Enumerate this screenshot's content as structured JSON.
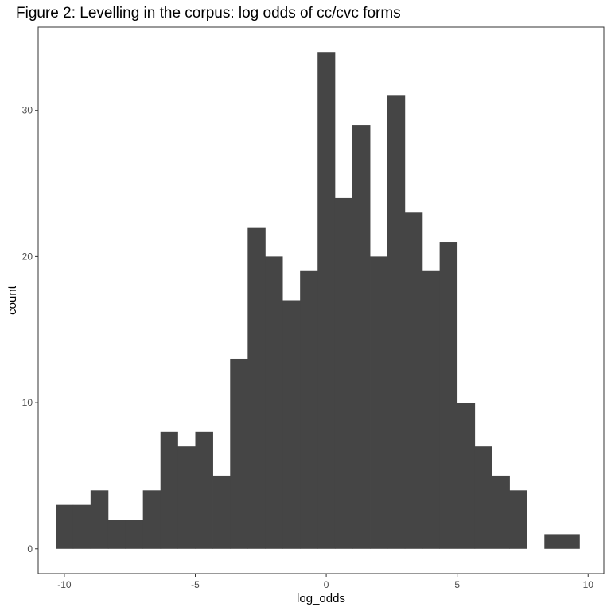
{
  "chart_data": {
    "type": "bar",
    "title": "Figure 2: Levelling in the corpus: log odds of cc/cvc forms",
    "xlabel": "log_odds",
    "ylabel": "count",
    "xlim": [
      -11.0,
      10.6
    ],
    "ylim": [
      -1.7,
      35.7
    ],
    "x_ticks": [
      -10,
      -5,
      0,
      5,
      10
    ],
    "x_tick_labels": [
      "-10",
      "-5",
      "0",
      "5",
      "10"
    ],
    "y_ticks": [
      0,
      10,
      20,
      30
    ],
    "y_tick_labels": [
      "0",
      "10",
      "20",
      "30"
    ],
    "grid": false,
    "bin_width": 0.667,
    "bins": [
      {
        "x0": -10.33,
        "x1": -9.67,
        "count": 3
      },
      {
        "x0": -9.67,
        "x1": -9.0,
        "count": 3
      },
      {
        "x0": -9.0,
        "x1": -8.33,
        "count": 4
      },
      {
        "x0": -8.33,
        "x1": -7.67,
        "count": 2
      },
      {
        "x0": -7.67,
        "x1": -7.0,
        "count": 2
      },
      {
        "x0": -7.0,
        "x1": -6.33,
        "count": 4
      },
      {
        "x0": -6.33,
        "x1": -5.67,
        "count": 8
      },
      {
        "x0": -5.67,
        "x1": -5.0,
        "count": 7
      },
      {
        "x0": -5.0,
        "x1": -4.33,
        "count": 8
      },
      {
        "x0": -4.33,
        "x1": -3.67,
        "count": 5
      },
      {
        "x0": -3.67,
        "x1": -3.0,
        "count": 13
      },
      {
        "x0": -3.0,
        "x1": -2.33,
        "count": 22
      },
      {
        "x0": -2.33,
        "x1": -1.67,
        "count": 20
      },
      {
        "x0": -1.67,
        "x1": -1.0,
        "count": 17
      },
      {
        "x0": -1.0,
        "x1": -0.33,
        "count": 19
      },
      {
        "x0": -0.33,
        "x1": 0.33,
        "count": 34
      },
      {
        "x0": 0.33,
        "x1": 1.0,
        "count": 24
      },
      {
        "x0": 1.0,
        "x1": 1.67,
        "count": 29
      },
      {
        "x0": 1.67,
        "x1": 2.33,
        "count": 20
      },
      {
        "x0": 2.33,
        "x1": 3.0,
        "count": 31
      },
      {
        "x0": 3.0,
        "x1": 3.67,
        "count": 23
      },
      {
        "x0": 3.67,
        "x1": 4.33,
        "count": 19
      },
      {
        "x0": 4.33,
        "x1": 5.0,
        "count": 21
      },
      {
        "x0": 5.0,
        "x1": 5.67,
        "count": 10
      },
      {
        "x0": 5.67,
        "x1": 6.33,
        "count": 7
      },
      {
        "x0": 6.33,
        "x1": 7.0,
        "count": 5
      },
      {
        "x0": 7.0,
        "x1": 7.67,
        "count": 4
      },
      {
        "x0": 7.67,
        "x1": 8.33,
        "count": 0
      },
      {
        "x0": 8.33,
        "x1": 9.0,
        "count": 1
      },
      {
        "x0": 9.0,
        "x1": 9.67,
        "count": 1
      }
    ],
    "colors": {
      "bar": "#454545",
      "panel_border": "#333333",
      "tick": "#333333",
      "tick_label": "#4d4d4d",
      "background": "#ffffff"
    }
  }
}
